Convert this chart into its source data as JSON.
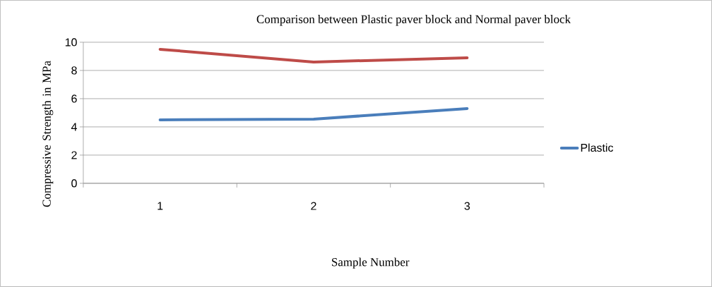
{
  "chart_data": {
    "type": "line",
    "title": "Comparison between Plastic paver block and Normal paver block",
    "xlabel": "Sample Number",
    "ylabel": "Compressive Strength in MPa",
    "categories": [
      "1",
      "2",
      "3"
    ],
    "series": [
      {
        "name": "Plastic",
        "color": "#4a7ebb",
        "values": [
          4.5,
          4.55,
          5.3
        ]
      },
      {
        "color": "#be4b48",
        "values": [
          9.5,
          8.6,
          8.9
        ]
      }
    ],
    "ylim": [
      0,
      10
    ],
    "yticks": [
      0,
      2,
      4,
      6,
      8,
      10
    ],
    "grid": "y",
    "legend": "right",
    "marker": "none",
    "line_style": "solid"
  }
}
